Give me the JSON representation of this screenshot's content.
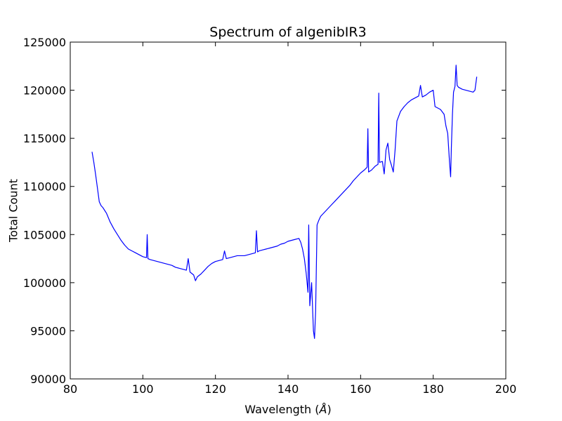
{
  "chart_data": {
    "type": "line",
    "title": "Spectrum of algenibIR3",
    "xlabel_prefix": "Wavelength (",
    "xlabel_unit": "Å",
    "xlabel_suffix": ")",
    "ylabel": "Total Count",
    "xlim": [
      80,
      200
    ],
    "ylim": [
      90000,
      125000
    ],
    "xticks": [
      80,
      100,
      120,
      140,
      160,
      180,
      200
    ],
    "yticks": [
      90000,
      95000,
      100000,
      105000,
      110000,
      115000,
      120000,
      125000
    ],
    "grid": false,
    "series": [
      {
        "color": "#0000ff",
        "x": [
          86.0,
          86.5,
          87.0,
          87.5,
          88.0,
          88.5,
          89.0,
          89.5,
          90.0,
          91.0,
          92.0,
          93.0,
          94.0,
          95.0,
          96.0,
          97.0,
          98.0,
          99.0,
          100.0,
          101.0,
          101.2,
          101.4,
          102.0,
          103.0,
          104.0,
          105.0,
          106.0,
          107.0,
          108.0,
          109.0,
          110.0,
          111.0,
          112.0,
          112.5,
          113.0,
          114.0,
          114.5,
          115.0,
          116.0,
          117.0,
          118.0,
          119.0,
          120.0,
          121.0,
          122.0,
          122.5,
          123.0,
          124.0,
          125.0,
          126.0,
          127.0,
          128.0,
          129.0,
          130.0,
          131.0,
          131.3,
          131.6,
          132.0,
          133.0,
          134.0,
          135.0,
          136.0,
          137.0,
          138.0,
          139.0,
          140.0,
          141.0,
          142.0,
          143.0,
          143.5,
          144.0,
          144.5,
          145.0,
          145.5,
          145.7,
          146.0,
          146.5,
          147.0,
          147.3,
          147.6,
          148.0,
          148.5,
          149.0,
          150.0,
          151.0,
          152.0,
          153.0,
          154.0,
          155.0,
          156.0,
          157.0,
          158.0,
          159.0,
          160.0,
          161.0,
          161.8,
          162.0,
          162.2,
          163.0,
          164.0,
          164.8,
          165.0,
          165.2,
          166.0,
          166.5,
          167.0,
          167.5,
          168.0,
          168.5,
          169.0,
          169.5,
          170.0,
          171.0,
          172.0,
          173.0,
          174.0,
          175.0,
          176.0,
          176.5,
          177.0,
          178.0,
          179.0,
          180.0,
          180.5,
          181.0,
          182.0,
          183.0,
          183.5,
          184.0,
          184.5,
          184.8,
          185.0,
          185.3,
          185.6,
          186.0,
          186.3,
          186.6,
          187.0,
          188.0,
          189.0,
          190.0,
          191.0,
          191.5,
          192.0
        ],
        "y": [
          113600,
          112500,
          111200,
          109800,
          108400,
          108000,
          107800,
          107500,
          107200,
          106300,
          105600,
          105000,
          104400,
          103900,
          103500,
          103300,
          103100,
          102900,
          102700,
          102600,
          105000,
          102500,
          102400,
          102300,
          102200,
          102100,
          102000,
          101900,
          101800,
          101600,
          101500,
          101400,
          101300,
          102500,
          101100,
          100800,
          100200,
          100600,
          100900,
          101300,
          101700,
          102000,
          102200,
          102300,
          102400,
          103300,
          102500,
          102600,
          102700,
          102800,
          102800,
          102800,
          102900,
          103000,
          103100,
          105400,
          103200,
          103300,
          103400,
          103500,
          103600,
          103700,
          103800,
          104000,
          104100,
          104300,
          104400,
          104500,
          104600,
          104200,
          103500,
          102500,
          101000,
          99000,
          106000,
          97600,
          100000,
          95000,
          94200,
          97000,
          106000,
          106500,
          106900,
          107300,
          107700,
          108100,
          108500,
          108900,
          109300,
          109700,
          110100,
          110600,
          111000,
          111400,
          111700,
          112000,
          116000,
          111500,
          111700,
          112100,
          112300,
          119700,
          112500,
          112600,
          111300,
          113800,
          114500,
          112800,
          112200,
          111500,
          113800,
          116800,
          117800,
          118300,
          118700,
          119000,
          119200,
          119400,
          120500,
          119300,
          119500,
          119800,
          120000,
          118300,
          118200,
          118000,
          117500,
          116300,
          115500,
          112500,
          111000,
          114000,
          117500,
          119800,
          120400,
          122600,
          120500,
          120300,
          120100,
          120000,
          119900,
          119800,
          120000,
          121400
        ]
      }
    ]
  }
}
